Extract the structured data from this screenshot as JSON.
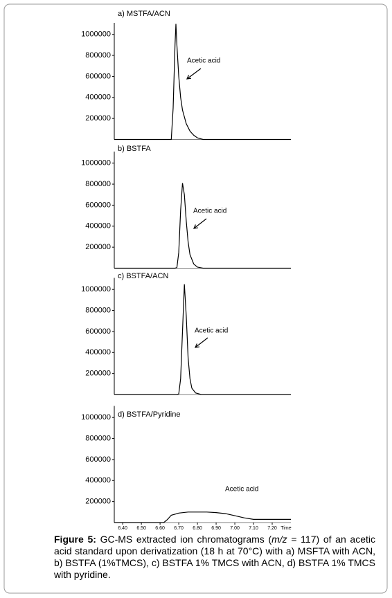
{
  "chart_data": [
    {
      "type": "line",
      "title": "a) MSTFA/ACN",
      "color": "#000000",
      "x": [
        6.355,
        6.6,
        6.66,
        6.67,
        6.68,
        6.685,
        6.69,
        6.7,
        6.71,
        6.72,
        6.74,
        6.76,
        6.78,
        6.8,
        6.83,
        7.3
      ],
      "values": [
        0,
        0,
        0,
        300000,
        900000,
        1100000,
        900000,
        600000,
        400000,
        280000,
        150000,
        80000,
        40000,
        15000,
        0,
        0
      ],
      "xlim": [
        6.355,
        7.3
      ],
      "ylim": [
        0,
        1110000
      ],
      "yticks": [
        200000,
        400000,
        600000,
        800000,
        1000000
      ],
      "annotation": "Acetic acid"
    },
    {
      "type": "line",
      "title": "b) BSTFA",
      "color": "#000000",
      "x": [
        6.355,
        6.68,
        6.69,
        6.7,
        6.71,
        6.72,
        6.73,
        6.74,
        6.75,
        6.76,
        6.78,
        6.8,
        6.83,
        7.3
      ],
      "values": [
        0,
        0,
        5000,
        150000,
        550000,
        810000,
        700000,
        450000,
        250000,
        130000,
        40000,
        10000,
        0,
        0
      ],
      "xlim": [
        6.355,
        7.3
      ],
      "ylim": [
        0,
        1110000
      ],
      "yticks": [
        200000,
        400000,
        600000,
        800000,
        1000000
      ],
      "annotation": "Acetic acid"
    },
    {
      "type": "line",
      "title": "c) BSTFA/ACN",
      "color": "#000000",
      "x": [
        6.355,
        6.69,
        6.7,
        6.71,
        6.72,
        6.73,
        6.74,
        6.75,
        6.76,
        6.77,
        6.79,
        6.82,
        7.3
      ],
      "values": [
        0,
        0,
        5000,
        150000,
        600000,
        1050000,
        750000,
        350000,
        150000,
        60000,
        15000,
        0,
        0
      ],
      "xlim": [
        6.355,
        7.3
      ],
      "ylim": [
        0,
        1110000
      ],
      "yticks": [
        200000,
        400000,
        600000,
        800000,
        1000000
      ],
      "annotation": "Acetic acid"
    },
    {
      "type": "line",
      "title": "d) BSTFA/Pyridine",
      "color": "#000000",
      "x": [
        6.355,
        6.62,
        6.64,
        6.66,
        6.7,
        6.75,
        6.8,
        6.85,
        6.9,
        6.95,
        7.0,
        7.05,
        7.1,
        7.3
      ],
      "values": [
        0,
        0,
        30000,
        70000,
        90000,
        100000,
        100000,
        100000,
        95000,
        85000,
        65000,
        45000,
        30000,
        30000
      ],
      "xlim": [
        6.355,
        7.3
      ],
      "ylim": [
        0,
        1110000
      ],
      "yticks": [
        200000,
        400000,
        600000,
        800000,
        1000000
      ],
      "xticks": [
        {
          "value": 6.4,
          "label": "6.40"
        },
        {
          "value": 6.5,
          "label": "6.50"
        },
        {
          "value": 6.6,
          "label": "6.60"
        },
        {
          "value": 6.7,
          "label": "6.70"
        },
        {
          "value": 6.8,
          "label": "6.80"
        },
        {
          "value": 6.9,
          "label": "6.90"
        },
        {
          "value": 7.0,
          "label": "7.00"
        },
        {
          "value": 7.1,
          "label": "7.10"
        },
        {
          "value": 7.2,
          "label": "7.20"
        }
      ],
      "xlabel": "Time",
      "annotation": "Acetic acid"
    }
  ],
  "caption": {
    "label": "Figure 5:",
    "text_before": " GC-MS extracted ion chromatograms (",
    "italic": "m/z",
    "text_after": " = 117) of an acetic acid standard upon derivatization (18 h at 70°C) with a) MSFTA with ACN, b) BSTFA (1%TMCS), c) BSTFA 1% TMCS with ACN, d) BSTFA 1% TMCS with pyridine."
  }
}
